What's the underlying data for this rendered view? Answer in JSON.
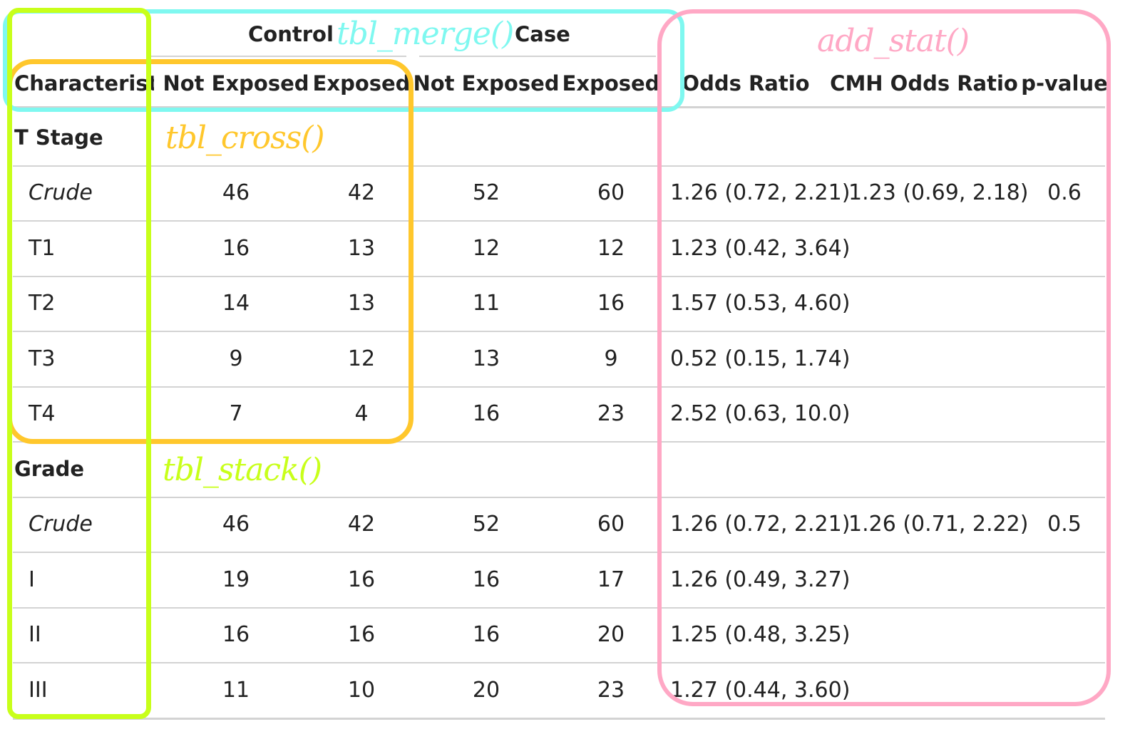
{
  "spanners": {
    "control": "Control",
    "case": "Case"
  },
  "columns": {
    "characteristic": "Characteristi",
    "control_not_exposed": "Not Exposed",
    "control_exposed": "Exposed",
    "case_not_exposed": "Not Exposed",
    "case_exposed": "Exposed",
    "odds_ratio": "Odds Ratio",
    "cmh_odds_ratio": "CMH Odds Ratio",
    "p_value": "p-value"
  },
  "rows": [
    {
      "label": "T Stage",
      "style": "group"
    },
    {
      "label": "Crude",
      "style": "crude",
      "c_ne": "46",
      "c_e": "42",
      "k_ne": "52",
      "k_e": "60",
      "or": "1.26 (0.72, 2.21)",
      "cmh": "1.23 (0.69, 2.18)",
      "p": "0.6"
    },
    {
      "label": "T1",
      "style": "level",
      "c_ne": "16",
      "c_e": "13",
      "k_ne": "12",
      "k_e": "12",
      "or": "1.23 (0.42, 3.64)"
    },
    {
      "label": "T2",
      "style": "level",
      "c_ne": "14",
      "c_e": "13",
      "k_ne": "11",
      "k_e": "16",
      "or": "1.57 (0.53, 4.60)"
    },
    {
      "label": "T3",
      "style": "level",
      "c_ne": "9",
      "c_e": "12",
      "k_ne": "13",
      "k_e": "9",
      "or": "0.52 (0.15, 1.74)"
    },
    {
      "label": "T4",
      "style": "level",
      "c_ne": "7",
      "c_e": "4",
      "k_ne": "16",
      "k_e": "23",
      "or": "2.52 (0.63, 10.0)"
    },
    {
      "label": "Grade",
      "style": "group"
    },
    {
      "label": "Crude",
      "style": "crude",
      "c_ne": "46",
      "c_e": "42",
      "k_ne": "52",
      "k_e": "60",
      "or": "1.26 (0.72, 2.21)",
      "cmh": "1.26 (0.71, 2.22)",
      "p": "0.5"
    },
    {
      "label": "I",
      "style": "level",
      "c_ne": "19",
      "c_e": "16",
      "k_ne": "16",
      "k_e": "17",
      "or": "1.26 (0.49, 3.27)"
    },
    {
      "label": "II",
      "style": "level",
      "c_ne": "16",
      "c_e": "16",
      "k_ne": "16",
      "k_e": "20",
      "or": "1.25 (0.48, 3.25)"
    },
    {
      "label": "III",
      "style": "level",
      "c_ne": "11",
      "c_e": "10",
      "k_ne": "20",
      "k_e": "23",
      "or": "1.27 (0.44, 3.60)"
    }
  ],
  "annotations": {
    "tbl_merge": {
      "label": "tbl_merge()",
      "color": "#7ff8f0"
    },
    "tbl_cross": {
      "label": "tbl_cross()",
      "color": "#ffc72c"
    },
    "tbl_stack": {
      "label": "tbl_stack()",
      "color": "#c8ff1a"
    },
    "add_stat": {
      "label": "add_stat()",
      "color": "#ffa8c5"
    }
  }
}
